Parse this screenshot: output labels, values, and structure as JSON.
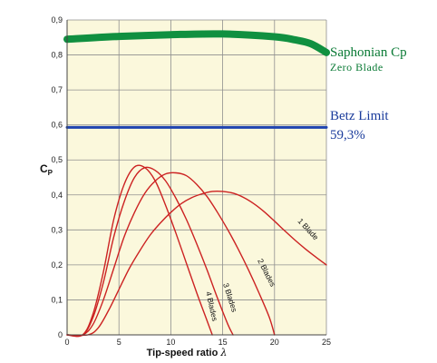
{
  "chart_data": {
    "type": "line",
    "xlabel": "Tip-speed ratio",
    "xlabel_symbol": "λ",
    "ylabel": "C",
    "ylabel_sub": "P",
    "xlim": [
      0,
      25
    ],
    "ylim": [
      0,
      0.9
    ],
    "x_ticks": [
      "0",
      "5",
      "10",
      "15",
      "20",
      "25"
    ],
    "y_ticks": [
      "0",
      "0,1",
      "0,2",
      "0,3",
      "0,4",
      "0,5",
      "0,6",
      "0,7",
      "0,8",
      "0,9"
    ],
    "grid": true,
    "colors": {
      "plot_background": "#fbf8dc",
      "grid": "#8f8f8f",
      "blade_curves": "#cc2222",
      "saphonian": "#109040",
      "betz": "#1f44b0"
    },
    "series": [
      {
        "name": "Saphonian Cp",
        "subtitle": "Zero Blade",
        "x": [
          0,
          5,
          10,
          15,
          20,
          22,
          23.5,
          25
        ],
        "y": [
          0.845,
          0.853,
          0.858,
          0.86,
          0.852,
          0.843,
          0.832,
          0.807
        ]
      },
      {
        "name": "Betz Limit",
        "value_label": "59,3%",
        "x": [
          0,
          25
        ],
        "y": [
          0.593,
          0.593
        ]
      },
      {
        "name": "1 Blade",
        "x": [
          0,
          2,
          3,
          4,
          5,
          6,
          7,
          8,
          9,
          10,
          11,
          12,
          13,
          14,
          15,
          16,
          17,
          18,
          19,
          20,
          21,
          22,
          23,
          24,
          25
        ],
        "y": [
          0,
          0,
          0.02,
          0.07,
          0.13,
          0.19,
          0.24,
          0.285,
          0.32,
          0.35,
          0.375,
          0.392,
          0.403,
          0.41,
          0.41,
          0.405,
          0.393,
          0.375,
          0.352,
          0.325,
          0.297,
          0.27,
          0.245,
          0.222,
          0.2
        ]
      },
      {
        "name": "2 Blades",
        "x": [
          0,
          1.5,
          2.5,
          3.5,
          4.5,
          5.5,
          6.5,
          7.5,
          8.5,
          9.5,
          10.5,
          11.5,
          12.5,
          13.5,
          14.5,
          15.5,
          16.5,
          17.5,
          18.5,
          19.5,
          20
        ],
        "y": [
          0,
          0,
          0.03,
          0.1,
          0.19,
          0.28,
          0.35,
          0.405,
          0.44,
          0.46,
          0.463,
          0.455,
          0.43,
          0.395,
          0.35,
          0.3,
          0.245,
          0.185,
          0.12,
          0.05,
          0
        ]
      },
      {
        "name": "3 Blades",
        "x": [
          0,
          1.5,
          2.5,
          3.5,
          4.5,
          5.5,
          6.5,
          7.5,
          8.5,
          9.5,
          10.5,
          11.5,
          12.5,
          13.5,
          14.5,
          15.5,
          16
        ],
        "y": [
          0,
          0,
          0.05,
          0.15,
          0.28,
          0.38,
          0.45,
          0.478,
          0.47,
          0.44,
          0.39,
          0.33,
          0.26,
          0.185,
          0.105,
          0.03,
          0
        ]
      },
      {
        "name": "4 Blades",
        "x": [
          0,
          1.5,
          2.5,
          3.5,
          4.5,
          5.5,
          6.5,
          7.5,
          8.5,
          9.5,
          10.5,
          11.5,
          12.5,
          13.5,
          14
        ],
        "y": [
          0,
          0,
          0.06,
          0.18,
          0.33,
          0.43,
          0.48,
          0.478,
          0.44,
          0.37,
          0.29,
          0.205,
          0.12,
          0.04,
          0
        ]
      }
    ]
  }
}
